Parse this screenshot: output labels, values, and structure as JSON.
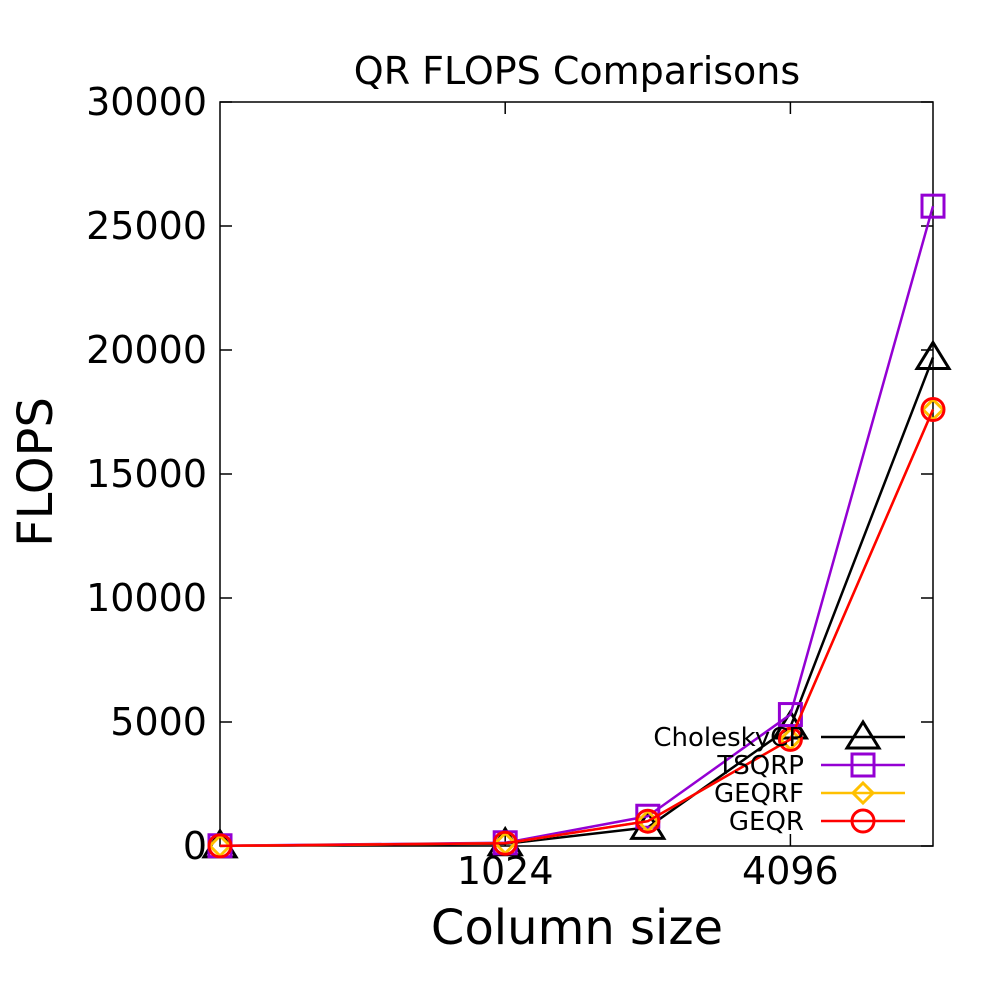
{
  "chart_data": {
    "type": "line",
    "title": "QR FLOPS Comparisons",
    "xlabel": "Column size",
    "ylabel": "FLOPS",
    "x": [
      256,
      1024,
      2048,
      4096,
      8192
    ],
    "x_scale": "log2",
    "xticks": [
      1024,
      4096
    ],
    "xtick_labels": [
      "1024",
      "4096"
    ],
    "yticks": [
      0,
      5000,
      10000,
      15000,
      20000,
      25000,
      30000
    ],
    "ytick_labels": [
      "0",
      "5000",
      "10000",
      "15000",
      "20000",
      "25000",
      "30000"
    ],
    "ylim": [
      0,
      30000
    ],
    "grid": false,
    "legend_position": "bottom-right",
    "series": [
      {
        "name": "CholeskyCP",
        "color": "#000000",
        "marker": "triangle",
        "values": [
          5,
          90,
          750,
          4800,
          19700
        ]
      },
      {
        "name": "TSQRP",
        "color": "#9400d3",
        "marker": "square",
        "values": [
          10,
          130,
          1200,
          5300,
          25800
        ]
      },
      {
        "name": "GEQRF",
        "color": "#ffc000",
        "marker": "diamond",
        "values": [
          5,
          110,
          1000,
          4300,
          17600
        ]
      },
      {
        "name": "GEQR",
        "color": "#ff0000",
        "marker": "circle",
        "values": [
          5,
          110,
          1000,
          4300,
          17600
        ]
      }
    ]
  }
}
